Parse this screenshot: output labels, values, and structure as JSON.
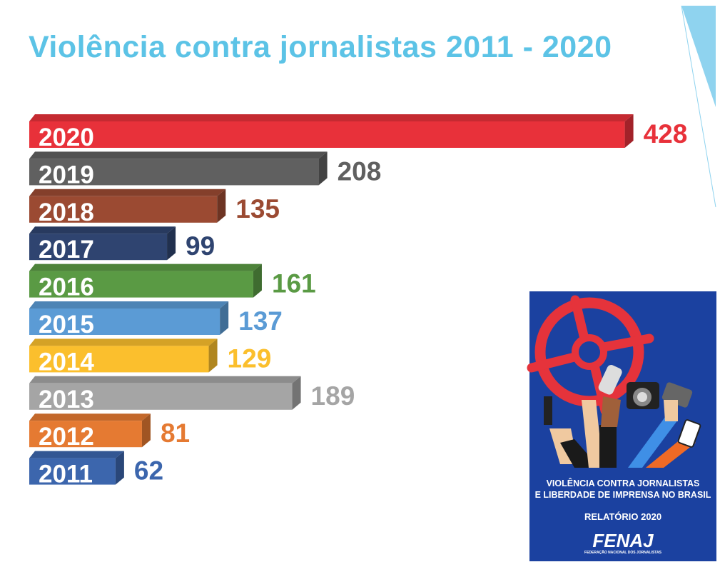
{
  "chart_data": {
    "type": "bar",
    "orientation": "horizontal",
    "title": "Violência contra jornalistas 2011 - 2020",
    "xlabel": "",
    "ylabel": "",
    "categories": [
      "2020",
      "2019",
      "2018",
      "2017",
      "2016",
      "2015",
      "2014",
      "2013",
      "2012",
      "2011"
    ],
    "values": [
      428,
      208,
      135,
      99,
      161,
      137,
      129,
      189,
      81,
      62
    ],
    "colors": [
      "#e8313a",
      "#606060",
      "#9b4a32",
      "#2f4470",
      "#5a9a44",
      "#5b9bd5",
      "#fbbf2d",
      "#a5a5a5",
      "#e57a32",
      "#3c66ad"
    ],
    "grid": false,
    "legend": "none"
  },
  "cover": {
    "line1": "VIOLÊNCIA CONTRA JORNALISTAS",
    "line2": "E LIBERDADE DE IMPRENSA NO BRASIL",
    "report": "RELATÓRIO 2020",
    "logo": "FENAJ",
    "logo_sub": "FEDERAÇÃO NACIONAL DOS JORNALISTAS"
  }
}
